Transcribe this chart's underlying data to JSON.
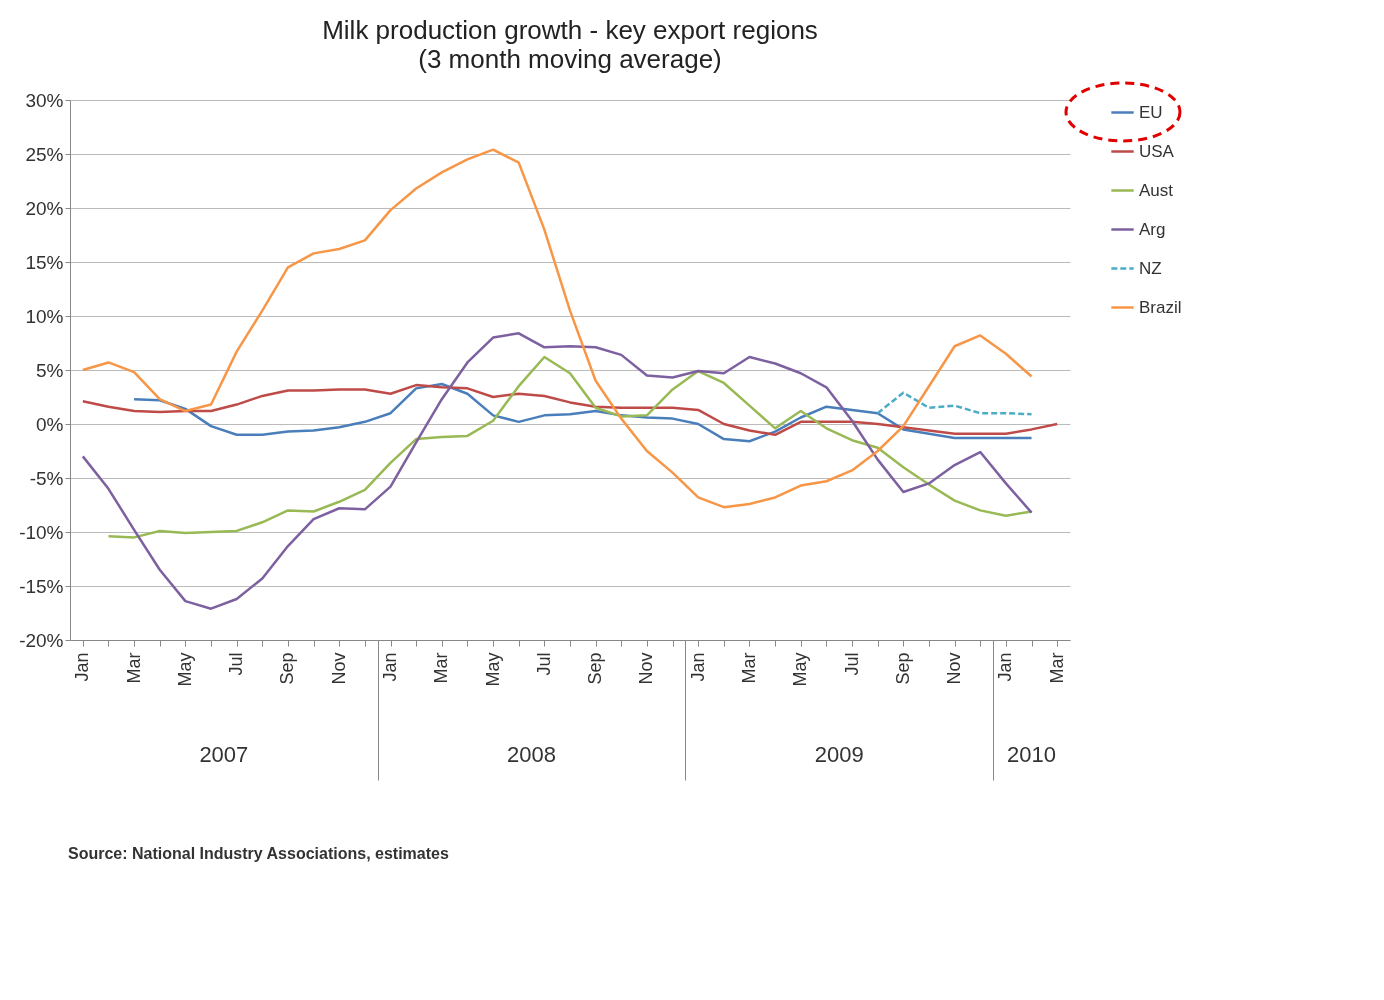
{
  "chart_data": {
    "type": "line",
    "title": "Milk production growth - key export regions",
    "subtitle": "(3 month moving average)",
    "categories": [
      "Jan",
      null,
      "Mar",
      null,
      "May",
      null,
      "Jul",
      null,
      "Sep",
      null,
      "Nov",
      null,
      "Jan",
      null,
      "Mar",
      null,
      "May",
      null,
      "Jul",
      null,
      "Sep",
      null,
      "Nov",
      null,
      "Jan",
      null,
      "Mar",
      null,
      "May",
      null,
      "Jul",
      null,
      "Sep",
      null,
      "Nov",
      null,
      "Jan",
      null,
      "Mar"
    ],
    "ylim": [
      -20,
      30
    ],
    "yticks": [
      {
        "value": -20,
        "label": "-20%"
      },
      {
        "value": -15,
        "label": "-15%"
      },
      {
        "value": -10,
        "label": "-10%"
      },
      {
        "value": -5,
        "label": "-5%"
      },
      {
        "value": 0,
        "label": "0%"
      },
      {
        "value": 5,
        "label": "5%"
      },
      {
        "value": 10,
        "label": "10%"
      },
      {
        "value": 15,
        "label": "15%"
      },
      {
        "value": 20,
        "label": "20%"
      },
      {
        "value": 25,
        "label": "25%"
      },
      {
        "value": 30,
        "label": "30%"
      }
    ],
    "grid": "y",
    "legend": "right",
    "series": [
      {
        "name": "EU",
        "color": "#4a7ebb",
        "values": [
          null,
          null,
          2.3,
          2.2,
          1.4,
          -0.2,
          -1.0,
          -1.0,
          -0.7,
          -0.6,
          -0.3,
          0.2,
          1.0,
          3.3,
          3.7,
          2.8,
          0.8,
          0.2,
          0.8,
          0.9,
          1.2,
          0.8,
          0.6,
          0.5,
          0.0,
          -1.4,
          -1.6,
          -0.7,
          0.6,
          1.6,
          1.3,
          1.0,
          -0.5,
          -0.9,
          -1.3,
          -1.3,
          -1.3,
          -1.3,
          null
        ]
      },
      {
        "name": "USA",
        "color": "#be4b48",
        "values": [
          2.1,
          1.6,
          1.2,
          1.1,
          1.2,
          1.2,
          1.8,
          2.6,
          3.1,
          3.1,
          3.2,
          3.2,
          2.8,
          3.6,
          3.4,
          3.3,
          2.5,
          2.8,
          2.6,
          2.0,
          1.6,
          1.5,
          1.5,
          1.5,
          1.3,
          0.0,
          -0.6,
          -1.0,
          0.2,
          0.2,
          0.2,
          0.0,
          -0.3,
          -0.6,
          -0.9,
          -0.9,
          -0.9,
          -0.5,
          0.0
        ]
      },
      {
        "name": "Aust",
        "color": "#98b954",
        "values": [
          null,
          -10.4,
          -10.5,
          -9.9,
          -10.1,
          -10.0,
          -9.9,
          -9.1,
          -8.0,
          -8.1,
          -7.2,
          -6.1,
          -3.6,
          -1.4,
          -1.2,
          -1.1,
          0.3,
          3.5,
          6.2,
          4.7,
          1.5,
          0.7,
          0.8,
          3.2,
          4.9,
          3.8,
          1.7,
          -0.4,
          1.2,
          -0.4,
          -1.5,
          -2.2,
          -4.0,
          -5.6,
          -7.1,
          -8.0,
          -8.5,
          -8.1,
          null
        ]
      },
      {
        "name": "Arg",
        "color": "#7d60a0",
        "values": [
          -3.0,
          -6.0,
          -9.8,
          -13.5,
          -16.4,
          -17.1,
          -16.2,
          -14.3,
          -11.3,
          -8.8,
          -7.8,
          -7.9,
          -5.8,
          -1.7,
          2.3,
          5.7,
          8.0,
          8.4,
          7.1,
          7.2,
          7.1,
          6.4,
          4.5,
          4.3,
          4.9,
          4.7,
          6.2,
          5.6,
          4.7,
          3.4,
          0.3,
          -3.3,
          -6.3,
          -5.5,
          -3.8,
          -2.6,
          -5.5,
          -8.2,
          null
        ]
      },
      {
        "name": "NZ",
        "color": "#4bacc6",
        "line_style": "dashed",
        "values": [
          null,
          null,
          null,
          null,
          null,
          null,
          null,
          null,
          null,
          null,
          null,
          null,
          null,
          null,
          null,
          null,
          null,
          null,
          null,
          null,
          null,
          null,
          null,
          null,
          null,
          null,
          null,
          null,
          null,
          null,
          null,
          1.0,
          2.9,
          1.5,
          1.7,
          1.0,
          1.0,
          0.9,
          null
        ]
      },
      {
        "name": "Brazil",
        "color": "#f79646",
        "values": [
          5.0,
          5.7,
          4.8,
          2.3,
          1.2,
          1.8,
          6.7,
          10.5,
          14.5,
          15.8,
          16.2,
          17.0,
          19.8,
          21.8,
          23.3,
          24.5,
          25.4,
          24.2,
          18.0,
          10.5,
          4.0,
          0.5,
          -2.5,
          -4.5,
          -6.8,
          -7.7,
          -7.4,
          -6.8,
          -5.7,
          -5.3,
          -4.3,
          -2.5,
          -0.2,
          3.5,
          7.2,
          8.2,
          6.5,
          4.4,
          null
        ]
      }
    ],
    "annotations": [
      "2007",
      "2008",
      "2009",
      "2010",
      "Source: National Industry Associations, estimates"
    ]
  }
}
